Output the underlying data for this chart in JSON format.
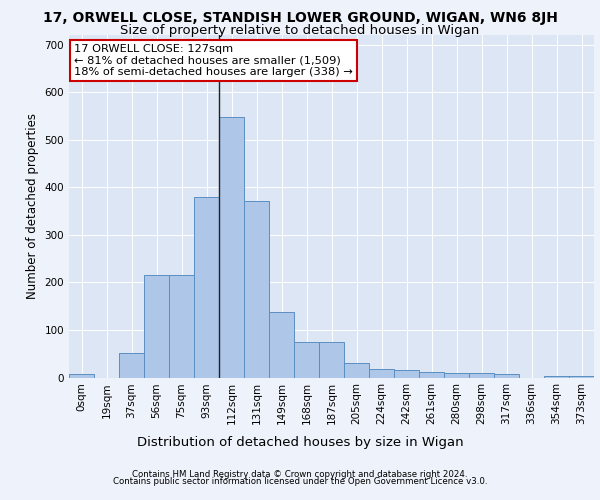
{
  "title_line1": "17, ORWELL CLOSE, STANDISH LOWER GROUND, WIGAN, WN6 8JH",
  "title_line2": "Size of property relative to detached houses in Wigan",
  "xlabel": "Distribution of detached houses by size in Wigan",
  "ylabel": "Number of detached properties",
  "footer_line1": "Contains HM Land Registry data © Crown copyright and database right 2024.",
  "footer_line2": "Contains public sector information licensed under the Open Government Licence v3.0.",
  "annotation_line1": "17 ORWELL CLOSE: 127sqm",
  "annotation_line2": "← 81% of detached houses are smaller (1,509)",
  "annotation_line3": "18% of semi-detached houses are larger (338) →",
  "categories": [
    "0sqm",
    "19sqm",
    "37sqm",
    "56sqm",
    "75sqm",
    "93sqm",
    "112sqm",
    "131sqm",
    "149sqm",
    "168sqm",
    "187sqm",
    "205sqm",
    "224sqm",
    "242sqm",
    "261sqm",
    "280sqm",
    "298sqm",
    "317sqm",
    "336sqm",
    "354sqm",
    "373sqm"
  ],
  "bar_values": [
    7,
    0,
    52,
    215,
    215,
    380,
    548,
    370,
    138,
    75,
    75,
    30,
    18,
    15,
    11,
    10,
    10,
    8,
    0,
    3,
    3
  ],
  "bar_color": "#aec6e8",
  "bar_edge_color": "#5a8fc3",
  "vline_color": "#222222",
  "vline_x_idx": 6,
  "ylim": [
    0,
    720
  ],
  "yticks": [
    0,
    100,
    200,
    300,
    400,
    500,
    600,
    700
  ],
  "fig_bg_color": "#eef2fa",
  "plot_bg_color": "#dce6f5",
  "annotation_box_facecolor": "#ffffff",
  "annotation_box_edgecolor": "#cc0000",
  "title1_fontsize": 10,
  "title2_fontsize": 9.5,
  "xlabel_fontsize": 9.5,
  "ylabel_fontsize": 8.5,
  "tick_fontsize": 7.5,
  "footer_fontsize": 6.2,
  "annot_fontsize": 8.2
}
